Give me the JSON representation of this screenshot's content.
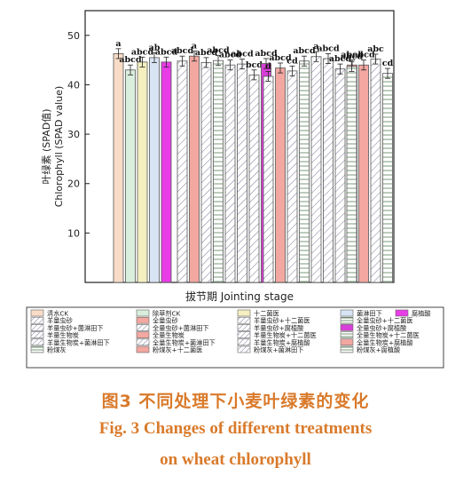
{
  "chart_data": {
    "type": "bar",
    "xlabel": "拔节期 Jointing stage",
    "ylabel": "叶绿素 (SPAD值)\nChlorophyll (SPAD value)",
    "ylim": [
      0,
      55
    ],
    "yticks": [
      10,
      20,
      30,
      40,
      50
    ],
    "grid": false,
    "legend_placement": "bottom",
    "series": [
      {
        "name": "清水CK",
        "value": 46.3,
        "error": 1.0,
        "label": "a",
        "color": "#f8dcc8",
        "pattern": "solid"
      },
      {
        "name": "除草剂CK",
        "value": 43.0,
        "error": 1.0,
        "label": "abcd",
        "color": "#d9eedd",
        "pattern": "solid"
      },
      {
        "name": "十二菌医",
        "value": 44.6,
        "error": 1.0,
        "label": "abcd",
        "color": "#f5efc0",
        "pattern": "solid"
      },
      {
        "name": "菌淋田下",
        "value": 45.5,
        "error": 1.0,
        "label": "ab",
        "color": "#d8e4f4",
        "pattern": "solid"
      },
      {
        "name": "腐植酸",
        "value": 44.6,
        "error": 1.0,
        "label": "abcd",
        "color": "#e83de6",
        "pattern": "solid"
      },
      {
        "name": "羊量虫砂",
        "value": 44.8,
        "error": 1.0,
        "label": "abcd",
        "color": "#ffffff",
        "pattern": "diag"
      },
      {
        "name": "全量虫砂",
        "value": 45.8,
        "error": 1.0,
        "label": "a",
        "color": "#f2a7a0",
        "pattern": "solid"
      },
      {
        "name": "羊量虫砂+十二菌医",
        "value": 44.5,
        "error": 1.0,
        "label": "abcd",
        "color": "#ffffff",
        "pattern": "diag"
      },
      {
        "name": "全量虫砂+十二菌医",
        "value": 44.9,
        "error": 1.0,
        "label": "abcd",
        "color": "#ffffff",
        "pattern": "hlines"
      },
      {
        "name": "羊量虫砂+菌淋田下",
        "value": 44.0,
        "error": 1.0,
        "label": "abcd",
        "color": "#ffffff",
        "pattern": "diag"
      },
      {
        "name": "全量虫砂+菌淋田下",
        "value": 44.2,
        "error": 1.0,
        "label": "abcd",
        "color": "#ffffff",
        "pattern": "diag"
      },
      {
        "name": "羊量虫砂+腐植酸",
        "value": 42.0,
        "error": 1.0,
        "label": "bcd",
        "color": "#ffffff",
        "pattern": "diag"
      },
      {
        "name": "全量虫砂+腐植酸",
        "value": 44.3,
        "error": 1.0,
        "label": "abcd",
        "color": "#d83fd8",
        "pattern": "solid"
      },
      {
        "name": "羊量生物炭",
        "value": 41.7,
        "error": 1.0,
        "label": "d",
        "color": "#ffffff",
        "pattern": "diag"
      },
      {
        "name": "全量生物炭",
        "value": 43.4,
        "error": 1.0,
        "label": "abcd",
        "color": "#f2a7a0",
        "pattern": "solid"
      },
      {
        "name": "羊量生物炭+十二菌医",
        "value": 42.8,
        "error": 1.0,
        "label": "cd",
        "color": "#ffffff",
        "pattern": "diag"
      },
      {
        "name": "全量生物炭+十二菌医",
        "value": 44.8,
        "error": 1.0,
        "label": "abcd",
        "color": "#ffffff",
        "pattern": "hlines"
      },
      {
        "name": "羊量生物炭+菌淋田下",
        "value": 45.7,
        "error": 1.0,
        "label": "a",
        "color": "#ffffff",
        "pattern": "diag"
      },
      {
        "name": "全量生物炭+菌淋田下",
        "value": 45.3,
        "error": 1.0,
        "label": "abcd",
        "color": "#ffffff",
        "pattern": "diag"
      },
      {
        "name": "羊量生物炭+腐植酸",
        "value": 43.2,
        "error": 1.0,
        "label": "abcd",
        "color": "#ffffff",
        "pattern": "diag"
      },
      {
        "name": "全量生物炭+腐植酸",
        "value": 44.0,
        "error": 1.0,
        "label": "abcd",
        "color": "#f2a7a0",
        "pattern": "solid"
      },
      {
        "name": "粉煤灰",
        "value": 43.7,
        "error": 1.0,
        "label": "abcd",
        "color": "#ffffff",
        "pattern": "hlines"
      },
      {
        "name": "粉煤灰+十二菌医",
        "value": 44.0,
        "error": 1.0,
        "label": "abcd",
        "color": "#f2a7a0",
        "pattern": "solid"
      },
      {
        "name": "粉煤灰+菌淋田下",
        "value": 45.2,
        "error": 1.0,
        "label": "abc",
        "color": "#ffffff",
        "pattern": "diag"
      },
      {
        "name": "粉煤灰+腐植酸",
        "value": 42.3,
        "error": 1.0,
        "label": "cd",
        "color": "#ffffff",
        "pattern": "hlines"
      }
    ]
  },
  "caption": {
    "cn": "图3   不同处理下小麦叶绿素的变化",
    "en_line1": "Fig. 3    Changes of different treatments",
    "en_line2": "on wheat chlorophyll"
  }
}
